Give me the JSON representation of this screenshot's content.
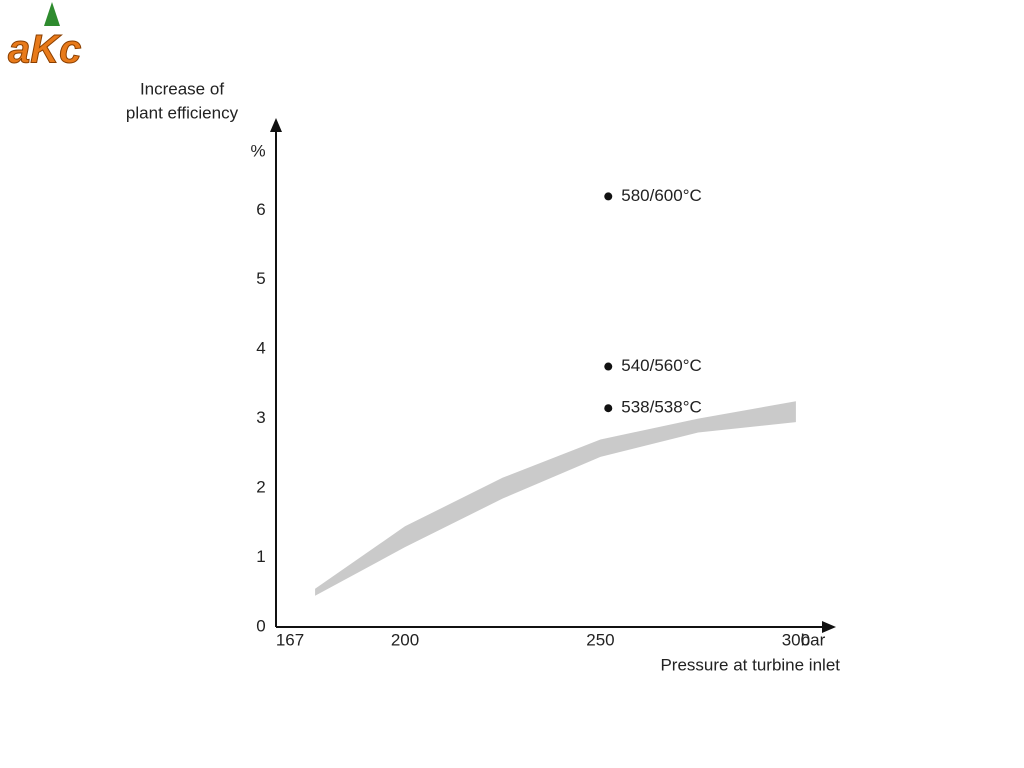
{
  "logo": "aKc",
  "chart_data": {
    "type": "scatter",
    "y_label": [
      "Increase of",
      "plant efficiency"
    ],
    "y_unit": "%",
    "x_label": "Pressure at turbine inlet",
    "x_unit": "bar",
    "xlim": [
      167,
      310
    ],
    "xticks": [
      167,
      200,
      250,
      300
    ],
    "ylim": [
      0,
      7.3
    ],
    "yticks": [
      0,
      1,
      2,
      3,
      4,
      5,
      6
    ],
    "grid": false,
    "series": [
      {
        "name": "580/600°C",
        "color": "#111111",
        "x": [
          252
        ],
        "values": [
          6.2
        ]
      },
      {
        "name": "540/560°C",
        "color": "#111111",
        "x": [
          252
        ],
        "values": [
          3.75
        ]
      },
      {
        "name": "538/538°C",
        "color": "#111111",
        "x": [
          252
        ],
        "values": [
          3.15
        ]
      }
    ],
    "band": {
      "color": "#c4c4c4",
      "x": [
        177,
        200,
        225,
        250,
        275,
        300
      ],
      "lower": [
        0.45,
        1.15,
        1.85,
        2.45,
        2.8,
        2.95
      ],
      "upper": [
        0.55,
        1.45,
        2.15,
        2.7,
        3.0,
        3.25
      ]
    }
  }
}
